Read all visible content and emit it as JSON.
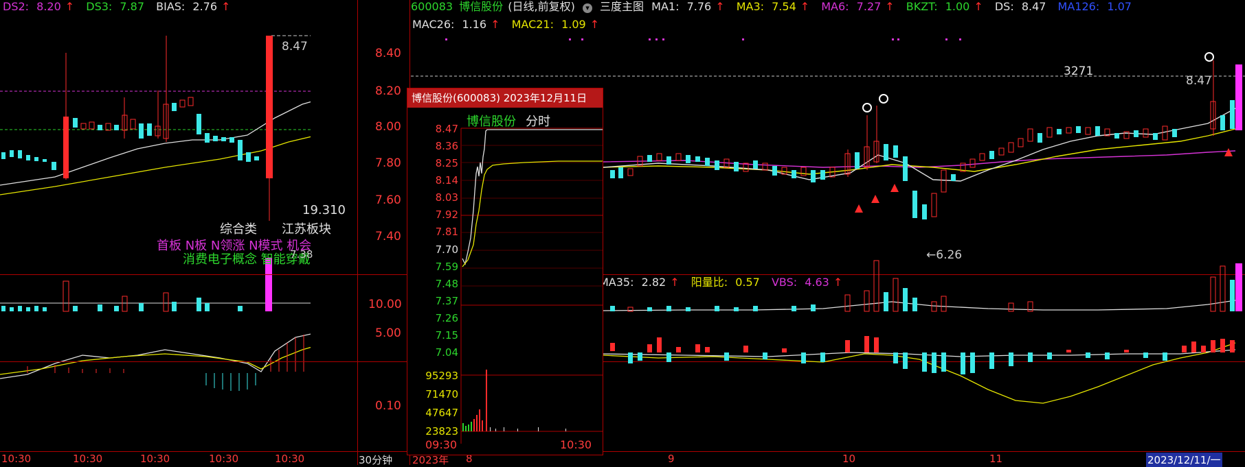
{
  "left_panel": {
    "header": [
      {
        "label": "DS2:",
        "value": "8.20",
        "color": "#d633d6"
      },
      {
        "label": "DS3:",
        "value": "7.87",
        "color": "#2dd62d"
      },
      {
        "label": "BIAS:",
        "value": "2.76",
        "color": "#e0e0e0"
      }
    ],
    "peak_label": "8.47",
    "volume_value": "19.310",
    "sector_labels": [
      "综合类",
      "江苏板块"
    ],
    "concept_line_1": "首板 N板 N领涨 N模式 机会",
    "concept_line_2": "消费电子概念 智能穿戴",
    "low_label": "7.38",
    "time_ticks": [
      "10:30",
      "10:30",
      "10:30",
      "10:30",
      "10:30"
    ]
  },
  "price_axis": {
    "ticks": [
      "8.40",
      "8.20",
      "8.00",
      "7.80",
      "7.60",
      "7.40"
    ],
    "volume_ticks": [
      "10.00",
      "5.00"
    ],
    "indicator_ticks": [
      "0.10"
    ]
  },
  "main_header": {
    "code": "600083",
    "name": "博信股份",
    "period": "(日线,前复权)",
    "main_chart_label": "三度主图",
    "indicators_row1": [
      {
        "label": "MA1:",
        "value": "7.76",
        "color": "#e0e0e0"
      },
      {
        "label": "MA3:",
        "value": "7.54",
        "color": "#e6e600"
      },
      {
        "label": "MA6:",
        "value": "7.27",
        "color": "#d633d6"
      },
      {
        "label": "BKZT:",
        "value": "1.00",
        "color": "#2dd62d"
      },
      {
        "label": "DS:",
        "value": "8.47",
        "color": "#e0e0e0"
      },
      {
        "label": "MA126:",
        "value": "1.07",
        "color": "#3050ff"
      }
    ],
    "indicators_row2": [
      {
        "label": "MAC26:",
        "value": "1.16",
        "color": "#e0e0e0"
      },
      {
        "label": "MAC21:",
        "value": "1.09",
        "color": "#e6e600"
      }
    ]
  },
  "main_chart": {
    "ref_line_value": "3271",
    "high_label": "8.47",
    "low_label": "6.26",
    "volume_header": [
      {
        "label": "MA35:",
        "value": "2.82",
        "color": "#e0e0e0"
      },
      {
        "label": "阳量比:",
        "value": "0.57",
        "color": "#e6e600"
      },
      {
        "label": "VBS:",
        "value": "4.63",
        "color": "#d633d6"
      }
    ],
    "period_button": "30分钟",
    "date_axis": [
      "2023年",
      "8",
      "9",
      "10",
      "11"
    ],
    "cursor_date": "2023/12/11/一"
  },
  "popup": {
    "title": "博信股份(600083) 2023年12月11日",
    "tab_name": "博信股份",
    "tab_mode": "分时",
    "prices_red": [
      "8.47",
      "8.36",
      "8.25",
      "8.14",
      "8.03",
      "7.92",
      "7.81"
    ],
    "price_mid": "7.70",
    "prices_green": [
      "7.59",
      "7.48",
      "7.37",
      "7.26",
      "7.15",
      "7.04"
    ],
    "volume_ticks": [
      "95293",
      "71470",
      "47647",
      "23823"
    ],
    "time_start": "09:30",
    "time_end": "10:30"
  }
}
